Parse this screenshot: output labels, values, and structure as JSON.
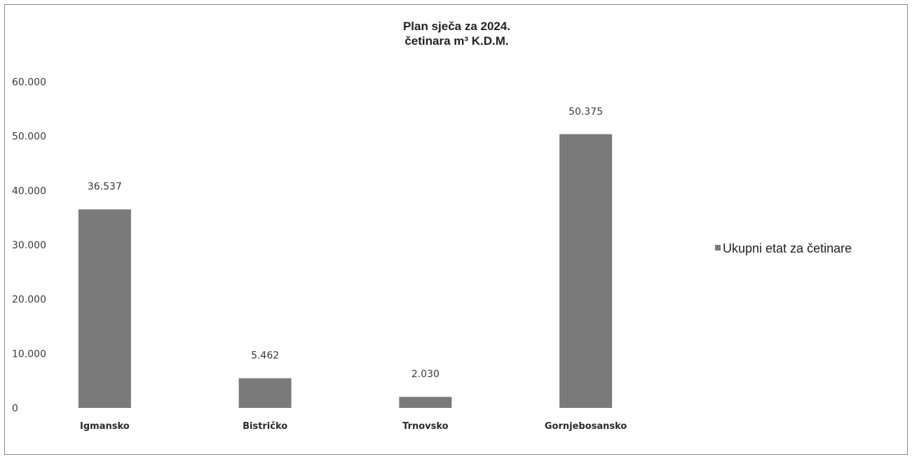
{
  "chart_data": {
    "type": "bar",
    "title_line1": "Plan sječa za 2024.",
    "title_line2": "četinara m³ K.D.M.",
    "xlabel": "",
    "ylabel": "",
    "ylim": [
      0,
      60000
    ],
    "yticks": [
      0,
      10000,
      20000,
      30000,
      40000,
      50000,
      60000
    ],
    "ytick_labels": [
      "0",
      "10.000",
      "20.000",
      "30.000",
      "40.000",
      "50.000",
      "60.000"
    ],
    "categories": [
      "Igmansko",
      "Bistričko",
      "Trnovsko",
      "Gornjebosansko"
    ],
    "series": [
      {
        "name": "Ukupni etat za četinare",
        "values": [
          36537,
          5462,
          2030,
          50375
        ],
        "value_labels": [
          "36.537",
          "5.462",
          "2.030",
          "50.375"
        ],
        "color": "#7a7a7a"
      }
    ],
    "grid": false,
    "legend_position": "right"
  }
}
